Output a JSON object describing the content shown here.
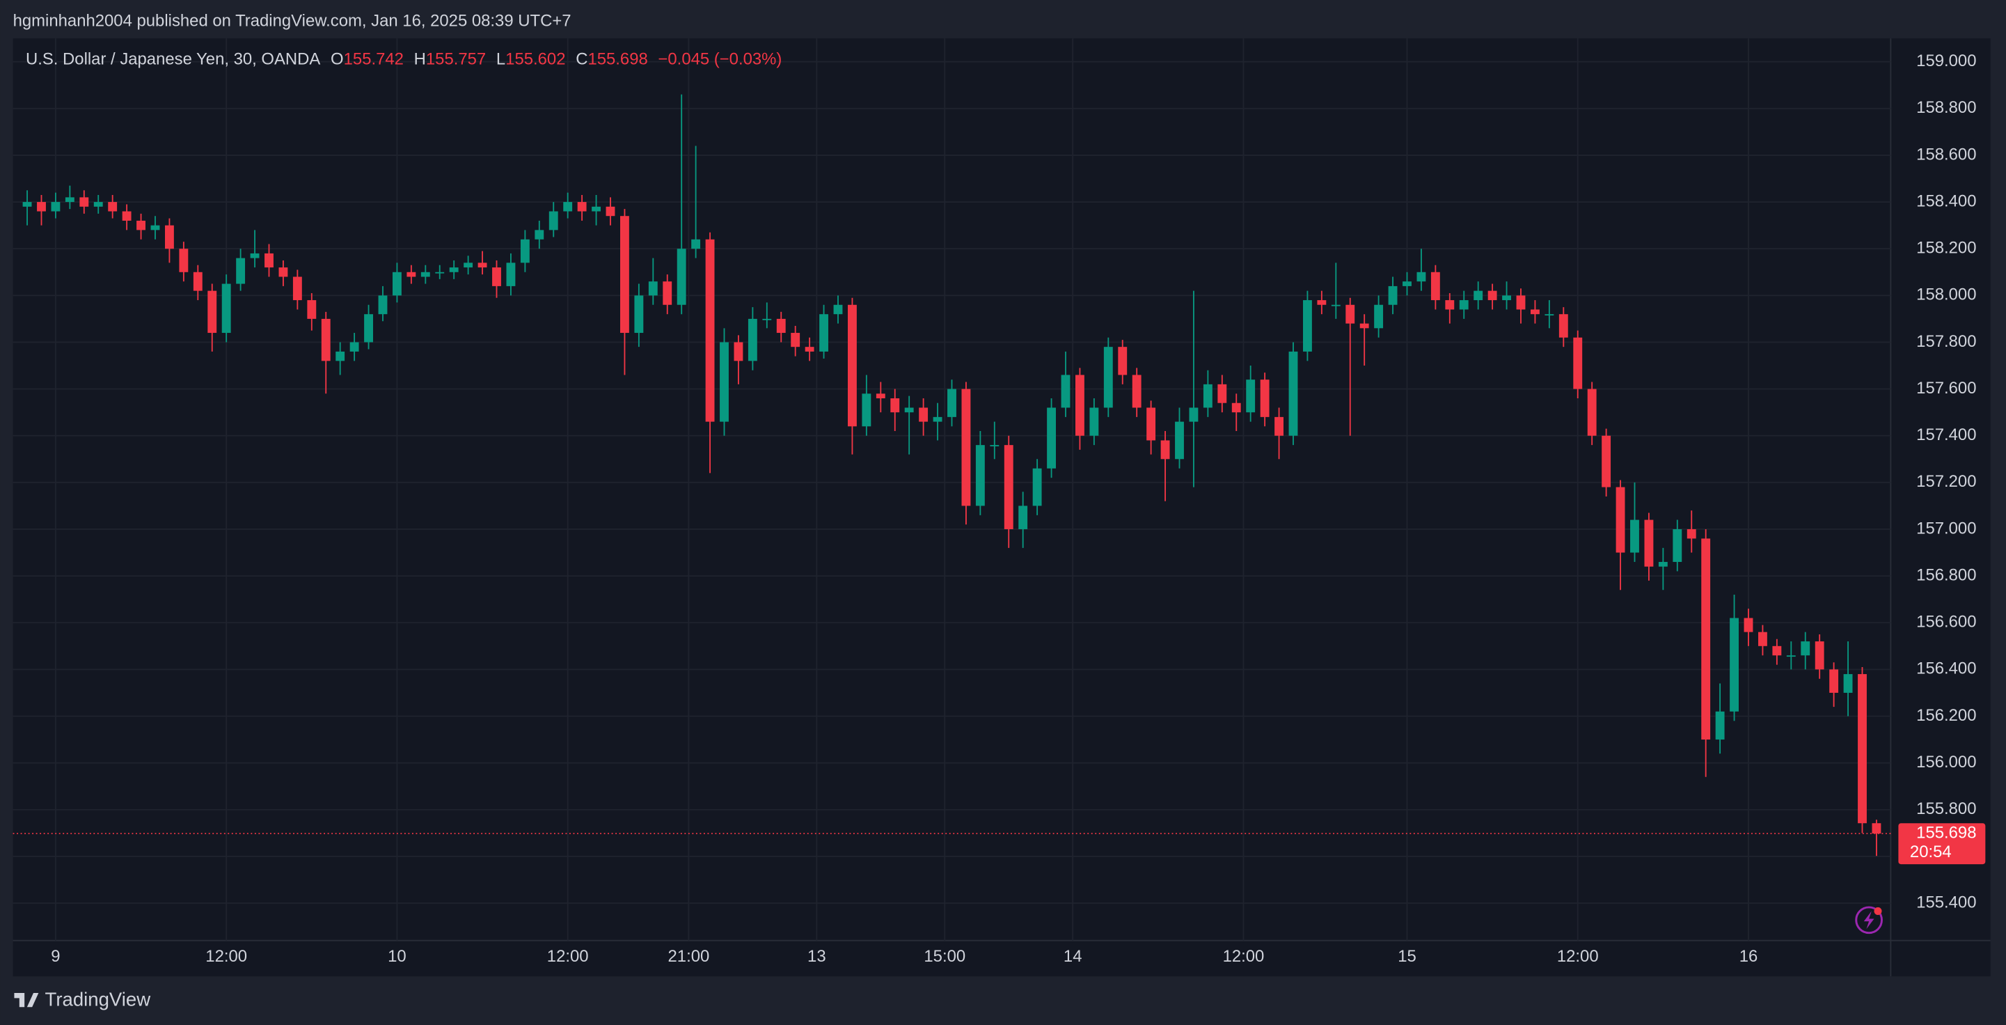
{
  "header": {
    "byline": "hgminhanh2004 published on TradingView.com, Jan 16, 2025 08:39 UTC+7",
    "symbol": "U.S. Dollar / Japanese Yen, 30, OANDA",
    "ohlc_letters": [
      "O",
      "H",
      "L",
      "C"
    ],
    "change": "−0.045 (−0.03%)",
    "countdown": "20:54"
  },
  "footer": {
    "brand": "TradingView"
  },
  "chart_data": {
    "type": "candlestick",
    "up_color": "#089981",
    "down_color": "#f23645",
    "grid": true,
    "xlim": [
      -1,
      131
    ],
    "xticks": [
      {
        "value": 2,
        "label": "9"
      },
      {
        "value": 14,
        "label": "12:00"
      },
      {
        "value": 26,
        "label": "10"
      },
      {
        "value": 38,
        "label": "12:00"
      },
      {
        "value": 46.5,
        "label": "21:00"
      },
      {
        "value": 55.5,
        "label": "13"
      },
      {
        "value": 64.5,
        "label": "15:00"
      },
      {
        "value": 73.5,
        "label": "14"
      },
      {
        "value": 85.5,
        "label": "12:00"
      },
      {
        "value": 97,
        "label": "15"
      },
      {
        "value": 109,
        "label": "12:00"
      },
      {
        "value": 121,
        "label": "16"
      }
    ],
    "ylim": [
      155.24,
      159.1
    ],
    "yticks": [
      {
        "value": 155.4,
        "label": "155.400"
      },
      {
        "value": 155.6,
        "label": "155.600"
      },
      {
        "value": 155.8,
        "label": "155.800"
      },
      {
        "value": 156.0,
        "label": "156.000"
      },
      {
        "value": 156.2,
        "label": "156.200"
      },
      {
        "value": 156.4,
        "label": "156.400"
      },
      {
        "value": 156.6,
        "label": "156.600"
      },
      {
        "value": 156.8,
        "label": "156.800"
      },
      {
        "value": 157.0,
        "label": "157.000"
      },
      {
        "value": 157.2,
        "label": "157.200"
      },
      {
        "value": 157.4,
        "label": "157.400"
      },
      {
        "value": 157.6,
        "label": "157.600"
      },
      {
        "value": 157.8,
        "label": "157.800"
      },
      {
        "value": 158.0,
        "label": "158.000"
      },
      {
        "value": 158.2,
        "label": "158.200"
      },
      {
        "value": 158.4,
        "label": "158.400"
      },
      {
        "value": 158.6,
        "label": "158.600"
      },
      {
        "value": 158.8,
        "label": "158.800"
      },
      {
        "value": 159.0,
        "label": "159.000"
      }
    ],
    "series": [
      {
        "open": [
          158.38,
          158.4,
          158.36,
          158.4,
          158.42,
          158.38,
          158.4,
          158.36,
          158.32,
          158.28,
          158.3,
          158.2,
          158.1,
          158.02,
          157.84,
          158.05,
          158.16,
          158.18,
          158.12,
          158.08,
          157.98,
          157.9,
          157.72,
          157.76,
          157.8,
          157.92,
          158.0,
          158.1,
          158.08,
          158.1,
          158.1,
          158.12,
          158.14,
          158.12,
          158.04,
          158.14,
          158.24,
          158.28,
          158.36,
          158.4,
          158.36,
          158.38,
          158.34,
          157.84,
          158.0,
          158.06,
          157.96,
          158.2,
          158.24,
          157.46,
          157.8,
          157.72,
          157.9,
          157.9,
          157.84,
          157.78,
          157.76,
          157.92,
          157.96,
          157.44,
          157.58,
          157.56,
          157.5,
          157.52,
          157.46,
          157.48,
          157.6,
          157.1,
          157.36,
          157.36,
          157.0,
          157.1,
          157.26,
          157.52,
          157.66,
          157.4,
          157.52,
          157.78,
          157.66,
          157.52,
          157.38,
          157.3,
          157.46,
          157.52,
          157.62,
          157.54,
          157.5,
          157.64,
          157.48,
          157.4,
          157.76,
          157.98,
          157.96,
          157.96,
          157.88,
          157.86,
          157.96,
          158.04,
          158.06,
          158.1,
          157.98,
          157.94,
          157.98,
          158.02,
          157.98,
          158.0,
          157.94,
          157.92,
          157.92,
          157.82,
          157.6,
          157.4,
          157.18,
          156.9,
          157.04,
          156.84,
          156.86,
          157.0,
          156.96,
          156.1,
          156.22,
          156.62,
          156.56,
          156.5,
          156.46,
          156.46,
          156.52,
          156.4,
          156.3,
          156.38,
          155.742
        ],
        "high": [
          158.45,
          158.43,
          158.44,
          158.47,
          158.45,
          158.43,
          158.43,
          158.39,
          158.35,
          158.34,
          158.33,
          158.23,
          158.13,
          158.05,
          158.09,
          158.2,
          158.28,
          158.22,
          158.15,
          158.11,
          158.01,
          157.93,
          157.8,
          157.84,
          157.96,
          158.04,
          158.14,
          158.13,
          158.13,
          158.13,
          158.15,
          158.17,
          158.19,
          158.15,
          158.18,
          158.28,
          158.32,
          158.4,
          158.44,
          158.43,
          158.43,
          158.42,
          158.37,
          158.05,
          158.16,
          158.09,
          158.86,
          158.64,
          158.27,
          157.86,
          157.83,
          157.95,
          157.97,
          157.93,
          157.87,
          157.82,
          157.96,
          158.0,
          157.99,
          157.66,
          157.63,
          157.6,
          157.57,
          157.56,
          157.54,
          157.64,
          157.63,
          157.42,
          157.46,
          157.4,
          157.16,
          157.3,
          157.56,
          157.76,
          157.69,
          157.56,
          157.82,
          157.81,
          157.69,
          157.55,
          157.42,
          157.52,
          158.02,
          157.68,
          157.66,
          157.58,
          157.7,
          157.67,
          157.52,
          157.8,
          158.02,
          158.02,
          158.14,
          157.99,
          157.92,
          158.0,
          158.08,
          158.1,
          158.2,
          158.13,
          158.01,
          158.02,
          158.06,
          158.05,
          158.06,
          158.03,
          157.98,
          157.98,
          157.95,
          157.85,
          157.63,
          157.43,
          157.21,
          157.2,
          157.07,
          156.92,
          157.04,
          157.08,
          157.0,
          156.34,
          156.72,
          156.66,
          156.59,
          156.53,
          156.52,
          156.56,
          156.55,
          156.43,
          156.52,
          156.41,
          155.757
        ],
        "low": [
          158.3,
          158.3,
          158.33,
          158.37,
          158.35,
          158.35,
          158.33,
          158.28,
          158.24,
          158.24,
          158.14,
          158.06,
          157.98,
          157.76,
          157.8,
          158.02,
          158.12,
          158.08,
          158.04,
          157.94,
          157.85,
          157.58,
          157.66,
          157.72,
          157.77,
          157.89,
          157.97,
          158.05,
          158.05,
          158.07,
          158.07,
          158.09,
          158.09,
          157.99,
          158.0,
          158.1,
          158.2,
          158.25,
          158.33,
          158.32,
          158.3,
          158.3,
          157.66,
          157.78,
          157.96,
          157.92,
          157.92,
          158.16,
          157.24,
          157.4,
          157.62,
          157.68,
          157.86,
          157.8,
          157.74,
          157.72,
          157.73,
          157.88,
          157.32,
          157.4,
          157.5,
          157.42,
          157.32,
          157.4,
          157.38,
          157.44,
          157.02,
          157.06,
          157.3,
          156.92,
          156.92,
          157.06,
          157.22,
          157.48,
          157.34,
          157.36,
          157.48,
          157.62,
          157.48,
          157.32,
          157.12,
          157.26,
          157.18,
          157.48,
          157.5,
          157.42,
          157.46,
          157.44,
          157.3,
          157.36,
          157.72,
          157.92,
          157.9,
          157.4,
          157.7,
          157.82,
          157.92,
          158.0,
          158.02,
          157.94,
          157.88,
          157.9,
          157.94,
          157.94,
          157.94,
          157.88,
          157.88,
          157.86,
          157.78,
          157.56,
          157.36,
          157.14,
          156.74,
          156.86,
          156.78,
          156.74,
          156.82,
          156.9,
          155.94,
          156.04,
          156.18,
          156.5,
          156.46,
          156.42,
          156.4,
          156.4,
          156.36,
          156.24,
          156.2,
          155.7,
          155.602
        ],
        "close": [
          158.4,
          158.36,
          158.4,
          158.42,
          158.38,
          158.4,
          158.36,
          158.32,
          158.28,
          158.3,
          158.2,
          158.1,
          158.02,
          157.84,
          158.05,
          158.16,
          158.18,
          158.12,
          158.08,
          157.98,
          157.9,
          157.72,
          157.76,
          157.8,
          157.92,
          158.0,
          158.1,
          158.08,
          158.1,
          158.1,
          158.12,
          158.14,
          158.12,
          158.04,
          158.14,
          158.24,
          158.28,
          158.36,
          158.4,
          158.36,
          158.38,
          158.34,
          157.84,
          158.0,
          158.06,
          157.96,
          158.2,
          158.24,
          157.46,
          157.8,
          157.72,
          157.9,
          157.9,
          157.84,
          157.78,
          157.76,
          157.92,
          157.96,
          157.44,
          157.58,
          157.56,
          157.5,
          157.52,
          157.46,
          157.48,
          157.6,
          157.1,
          157.36,
          157.36,
          157.0,
          157.1,
          157.26,
          157.52,
          157.66,
          157.4,
          157.52,
          157.78,
          157.66,
          157.52,
          157.38,
          157.3,
          157.46,
          157.52,
          157.62,
          157.54,
          157.5,
          157.64,
          157.48,
          157.4,
          157.76,
          157.98,
          157.96,
          157.96,
          157.88,
          157.86,
          157.96,
          158.04,
          158.06,
          158.1,
          157.98,
          157.94,
          157.98,
          158.02,
          157.98,
          158.0,
          157.94,
          157.92,
          157.92,
          157.82,
          157.6,
          157.4,
          157.18,
          156.9,
          157.04,
          156.84,
          156.86,
          157.0,
          156.96,
          156.1,
          156.22,
          156.62,
          156.56,
          156.5,
          156.46,
          156.46,
          156.52,
          156.4,
          156.3,
          156.38,
          155.742,
          155.698
        ]
      }
    ]
  }
}
